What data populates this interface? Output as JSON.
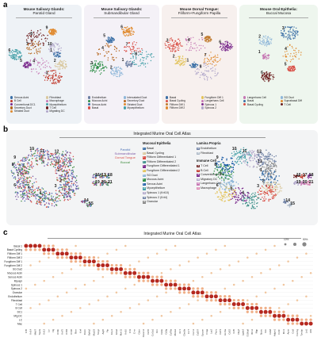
{
  "panel_a": {
    "label": "a",
    "panels": [
      {
        "title": "Mouse Salivary Glands:",
        "subtitle": "Parotid Gland",
        "bg": "#eef2f6",
        "clusters": [
          "1",
          "2",
          "3",
          "4",
          "5",
          "6",
          "7",
          "8",
          "9",
          "10"
        ],
        "legend": [
          {
            "name": "Serous Acini",
            "color": "#3b6fa6"
          },
          {
            "name": "Fibroblast",
            "color": "#d9c89e"
          },
          {
            "name": "B Cell",
            "color": "#c0392b"
          },
          {
            "name": "Macrophage",
            "color": "#c678b4"
          },
          {
            "name": "Conventional DC1",
            "color": "#7c2d8e"
          },
          {
            "name": "Myoepithelium",
            "color": "#45a0a8"
          },
          {
            "name": "Secretory Duct",
            "color": "#b5651d"
          },
          {
            "name": "T Cell",
            "color": "#6d2020"
          },
          {
            "name": "Striated Duct",
            "color": "#e08a2e"
          },
          {
            "name": "Migrating DC",
            "color": "#b0a6c9"
          }
        ]
      },
      {
        "title": "Mouse Salivary Glands:",
        "subtitle": "Submandibular Gland",
        "bg": "#f4f1f7",
        "clusters": [
          "1",
          "2",
          "3",
          "4",
          "5",
          "6",
          "7",
          "8"
        ],
        "legend": [
          {
            "name": "Endothelium",
            "color": "#6c7fa3"
          },
          {
            "name": "Intercalated Duct",
            "color": "#8fb7d9"
          },
          {
            "name": "Mucous Acini",
            "color": "#2f8f48"
          },
          {
            "name": "Secretory Duct",
            "color": "#b5651d"
          },
          {
            "name": "Serous Acini",
            "color": "#3b6fa6"
          },
          {
            "name": "Striated Duct",
            "color": "#e08a2e"
          },
          {
            "name": "Basal",
            "color": "#d94e45"
          },
          {
            "name": "Myoepithelium",
            "color": "#45a0a8"
          }
        ]
      },
      {
        "title": "Mouse Dorsal Tongue:",
        "subtitle": "Filiform+Fungiform Papilla",
        "bg": "#f7f0ee",
        "clusters": [
          "1",
          "2",
          "3",
          "4",
          "5",
          "6",
          "7",
          "8"
        ],
        "legend": [
          {
            "name": "Basal",
            "color": "#3b6fa6"
          },
          {
            "name": "Fungiform Diff 1",
            "color": "#e3c35a"
          },
          {
            "name": "Basal Cycling",
            "color": "#d94e45"
          },
          {
            "name": "Langerhans Cell",
            "color": "#c678b4"
          },
          {
            "name": "Filiform Diff 1",
            "color": "#c07a2e"
          },
          {
            "name": "Spinous 1",
            "color": "#7c2d8e"
          },
          {
            "name": "Filiform Diff 2",
            "color": "#e08a2e"
          },
          {
            "name": "Spinous 2",
            "color": "#b0a6c9"
          }
        ]
      },
      {
        "title": "Mouse Oral Epithelia:",
        "subtitle": "Buccal Mucosa",
        "bg": "#eef6ee",
        "clusters": [
          "1",
          "2",
          "3",
          "4",
          "5",
          "6"
        ],
        "legend": [
          {
            "name": "Langerhans Cell",
            "color": "#c678b4"
          },
          {
            "name": "SG Duct",
            "color": "#8fb7d9"
          },
          {
            "name": "Basal",
            "color": "#3b6fa6"
          },
          {
            "name": "Suprabasal Diff",
            "color": "#e08a2e"
          },
          {
            "name": "Basal Cycling",
            "color": "#d94e45"
          },
          {
            "name": "T Cell",
            "color": "#6d2020"
          }
        ]
      }
    ]
  },
  "panel_b": {
    "label": "b",
    "title": "Integrated Murine Oral Cell Atlas",
    "sources": [
      {
        "name": "Parotid",
        "color": "#4a6fb4"
      },
      {
        "name": "Submandibular",
        "color": "#7e5aa6"
      },
      {
        "name": "Dorsal Tongue",
        "color": "#d9534f"
      },
      {
        "name": "Buccal",
        "color": "#3d8b3d"
      }
    ],
    "mucosal_header": "Mucosal Epithelia",
    "mucosal": [
      {
        "id": "1",
        "name": "Basal",
        "color": "#3b6fa6"
      },
      {
        "id": "2",
        "name": "Basal Cycling",
        "color": "#d9c89e"
      },
      {
        "id": "3",
        "name": "Filiform Differentiated 1",
        "color": "#d94e45"
      },
      {
        "id": "4",
        "name": "Filiform Differentiated 2",
        "color": "#3b8f88"
      },
      {
        "id": "5",
        "name": "Fungiform Differentiated 1",
        "color": "#7c2d8e"
      },
      {
        "id": "6",
        "name": "Fungiform Differentiated 2",
        "color": "#e3c35a"
      },
      {
        "id": "7",
        "name": "SG Duct",
        "color": "#8fb7d9"
      },
      {
        "id": "8",
        "name": "Mucous Acini",
        "color": "#2f8f48"
      },
      {
        "id": "9",
        "name": "Serous Acini",
        "color": "#1f5fa8"
      },
      {
        "id": "10",
        "name": "Myoepithelium",
        "color": "#45a0a8"
      },
      {
        "id": "11",
        "name": "Spinous 1 (Krt10)",
        "color": "#b0a6c9"
      },
      {
        "id": "12",
        "name": "Spinous 2 (Krt4)",
        "color": "#6c7fa3"
      },
      {
        "id": "13",
        "name": "Granular",
        "color": "#8a8a8a"
      }
    ],
    "lamina_header": "Lamina Propria",
    "lamina": [
      {
        "id": "14",
        "name": "Endothelium",
        "color": "#6c7fa3"
      },
      {
        "id": "15",
        "name": "Fibroblast",
        "color": "#a8b5c4"
      }
    ],
    "immune_header": "Immune Cell",
    "immune": [
      {
        "id": "16",
        "name": "T Cell",
        "color": "#6d2020"
      },
      {
        "id": "17",
        "name": "B Cell",
        "color": "#c0392b"
      },
      {
        "id": "18",
        "name": "Conventional DC1",
        "color": "#7c2d8e"
      },
      {
        "id": "19",
        "name": "Migratory DC",
        "color": "#b0a6c9"
      },
      {
        "id": "20",
        "name": "Langerhans Cell",
        "color": "#c678b4"
      },
      {
        "id": "21",
        "name": "Macrophage",
        "color": "#d982b0"
      }
    ],
    "left_clusters": [
      "1",
      "2",
      "3",
      "4",
      "5",
      "6",
      "7",
      "8",
      "9",
      "10",
      "11",
      "12",
      "13",
      "14",
      "15",
      "16",
      "17",
      "18",
      "19",
      "20",
      "21"
    ],
    "right_clusters": [
      "1",
      "2",
      "3",
      "4",
      "5",
      "6",
      "7",
      "8",
      "9",
      "10",
      "11",
      "12",
      "13",
      "14",
      "15",
      "16",
      "17",
      "18",
      "19",
      "20",
      "21"
    ]
  },
  "panel_c": {
    "label": "c",
    "title": "Integrated Murine Oral Cell Atlas",
    "size_legend": [
      "10%",
      "50%"
    ],
    "rows": [
      "Basal 1",
      "Basal Cycling",
      "Filiform Diff 1",
      "Filiform Diff 2",
      "Fungiform Diff 1",
      "Fungiform Diff 2",
      "SG Duct",
      "Mucous Acini",
      "Serous Acini",
      "Myoepi",
      "Spinous 1",
      "Spinous 2",
      "Granular",
      "Endothelium",
      "Fibroblast",
      "T Cell",
      "B Cell",
      "DC1",
      "Mig DC",
      "LC",
      "Mac"
    ],
    "genes": [
      "Krt5",
      "Krt14",
      "Mki67",
      "Top2a",
      "Krt13",
      "Lor",
      "Flg",
      "Krt6b",
      "Krt75",
      "Krt84",
      "Krt36",
      "Sbsn",
      "Krt4",
      "Dmkn",
      "Bpifa2",
      "Muc19",
      "Smgc",
      "Aqp5",
      "Pip",
      "Amy1",
      "Acta2",
      "Myh11",
      "Krt10",
      "Krt1",
      "Crnn",
      "Cdsn",
      "Pecam1",
      "Cdh5",
      "Col1a1",
      "Dcn",
      "Cd3e",
      "Cd3g",
      "Cd79a",
      "Ms4a1",
      "Xcr1",
      "Clec9a",
      "Ccr7",
      "Fscn1",
      "Cd207",
      "Epcam",
      "C1qa",
      "Lyz2",
      "Ptprc",
      "Cd74",
      "H2-Aa",
      "Cd52",
      "Ccl5",
      "Nkg7",
      "Lgals3",
      "S100a8",
      "Ifitm1",
      "Mgp",
      "Sparc",
      "Vim",
      "Cd68",
      "Adgre1",
      "Csf1r",
      "Mrc1",
      "Apoe",
      "Cst3",
      "Fcer1g",
      "Tyrobp",
      "Lst1",
      "Aif1"
    ]
  }
}
